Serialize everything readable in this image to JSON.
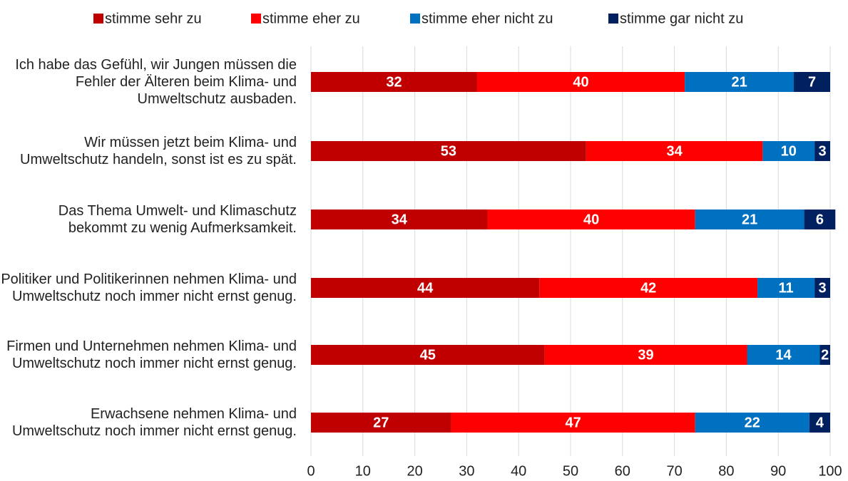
{
  "chart_data": {
    "type": "stacked_barh",
    "categories": [
      "Ich habe das Gefühl, wir Jungen müssen die Fehler der Älteren beim Klima- und Umweltschutz ausbaden.",
      "Wir müssen jetzt beim Klima- und Umweltschutz handeln, sonst ist es zu spät.",
      "Das Thema Umwelt- und Klimaschutz bekommt zu wenig Aufmerksamkeit.",
      "Politiker und Politikerinnen nehmen Klima- und Umweltschutz noch immer nicht ernst genug.",
      "Firmen und Unternehmen nehmen Klima- und Umweltschutz noch immer nicht ernst genug.",
      "Erwachsene nehmen Klima- und Umweltschutz noch immer nicht ernst genug."
    ],
    "series": [
      {
        "name": "stimme sehr zu",
        "color": "#c00000",
        "values": [
          32,
          53,
          34,
          44,
          45,
          27
        ]
      },
      {
        "name": "stimme eher zu",
        "color": "#ff0000",
        "values": [
          40,
          34,
          40,
          42,
          39,
          47
        ]
      },
      {
        "name": "stimme eher nicht zu",
        "color": "#0070c0",
        "values": [
          21,
          10,
          21,
          11,
          14,
          22
        ]
      },
      {
        "name": "stimme gar nicht zu",
        "color": "#002060",
        "values": [
          7,
          3,
          6,
          3,
          2,
          4
        ]
      }
    ],
    "xlim": [
      0,
      100
    ],
    "xticks": [
      0,
      10,
      20,
      30,
      40,
      50,
      60,
      70,
      80,
      90,
      100
    ],
    "grid": true,
    "legend": "top"
  }
}
